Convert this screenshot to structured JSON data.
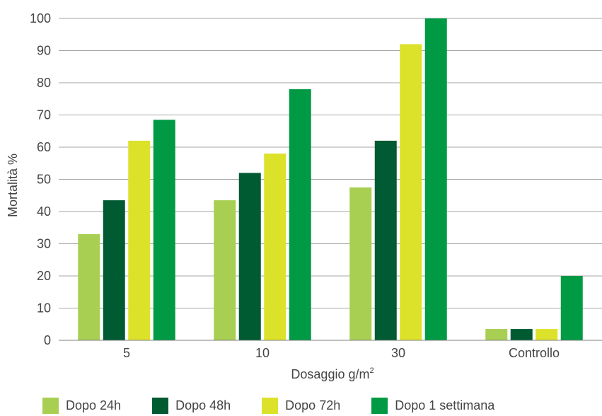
{
  "chart_data": {
    "type": "bar",
    "categories": [
      "5",
      "10",
      "30",
      "Controllo"
    ],
    "series": [
      {
        "name": "Dopo 24h",
        "color": "#a8cf52",
        "values": [
          33,
          43.5,
          47.5,
          3.5
        ]
      },
      {
        "name": "Dopo 48h",
        "color": "#005a32",
        "values": [
          43.5,
          52,
          62,
          3.5
        ]
      },
      {
        "name": "Dopo 72h",
        "color": "#dce22a",
        "values": [
          62,
          58,
          92,
          3.5
        ]
      },
      {
        "name": "Dopo 1 settimana",
        "color": "#009a44",
        "values": [
          68.5,
          78,
          100,
          20
        ]
      }
    ],
    "xlabel": "Dosaggio g/m",
    "xlabel_superscript": "2",
    "ylabel": "Mortalità %",
    "ylim": [
      0,
      100
    ],
    "yticks": [
      0,
      10,
      20,
      30,
      40,
      50,
      60,
      70,
      80,
      90,
      100
    ],
    "grid": true,
    "legend_position": "bottom"
  }
}
